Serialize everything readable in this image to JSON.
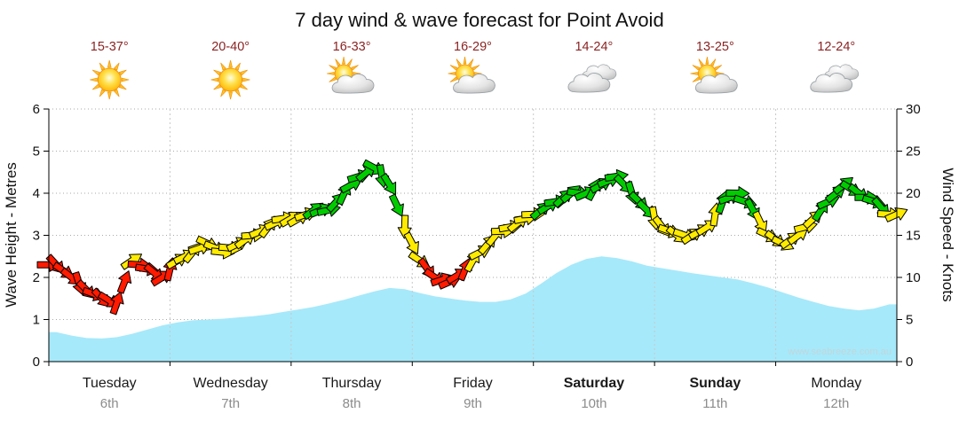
{
  "title": "7 day wind & wave forecast for Point Avoid",
  "watermark": "www.seabreeze.com.au",
  "axes": {
    "left_title": "Wave Height - Metres",
    "right_title": "Wind Speed - Knots"
  },
  "days": [
    {
      "name": "Tuesday",
      "date": "6th",
      "temp": "15-37°",
      "icon": "sunny",
      "bold": false
    },
    {
      "name": "Wednesday",
      "date": "7th",
      "temp": "20-40°",
      "icon": "sunny",
      "bold": false
    },
    {
      "name": "Thursday",
      "date": "8th",
      "temp": "16-33°",
      "icon": "partly-cloudy",
      "bold": false
    },
    {
      "name": "Friday",
      "date": "9th",
      "temp": "16-29°",
      "icon": "partly-cloudy",
      "bold": false
    },
    {
      "name": "Saturday",
      "date": "10th",
      "temp": "14-24°",
      "icon": "cloudy",
      "bold": true
    },
    {
      "name": "Sunday",
      "date": "11th",
      "temp": "13-25°",
      "icon": "partly-cloudy",
      "bold": true
    },
    {
      "name": "Monday",
      "date": "12th",
      "temp": "12-24°",
      "icon": "cloudy",
      "bold": false
    }
  ],
  "colors": {
    "temp": "#8B2323",
    "day": "#1A1A1A",
    "date": "#8C8C8C",
    "grid": "#AAAAAA",
    "day_divider": "#C8C8C8",
    "axis": "#000000",
    "watermark": "#C2D6DB",
    "wave": "#A6E9FA",
    "wind_red": "#FF1A00",
    "wind_yellow": "#FFEB00",
    "wind_green": "#00CC00"
  },
  "chart_data": {
    "type": "area",
    "description": "Wave height area (left axis, metres) with wind speed arrow band (right axis, knots), 3-hourly over 7 days",
    "x_unit": "hours",
    "x_start_hours": 1.5,
    "x_step_hours": 3,
    "days_span": 7,
    "left_axis": {
      "label": "Wave Height - Metres",
      "range": [
        0,
        6
      ],
      "tick": 1
    },
    "right_axis": {
      "label": "Wind Speed - Knots",
      "range": [
        0,
        30
      ],
      "tick": 5
    },
    "wind_color_thresholds": {
      "red_below_knots": 12,
      "yellow_below_knots": 18,
      "green_from_knots": 18
    },
    "series": [
      {
        "name": "Wave Height (m)",
        "type": "area",
        "axis": "left",
        "values": [
          0.7,
          0.62,
          0.56,
          0.55,
          0.58,
          0.66,
          0.76,
          0.86,
          0.93,
          0.98,
          1.0,
          1.02,
          1.05,
          1.08,
          1.12,
          1.18,
          1.24,
          1.3,
          1.38,
          1.47,
          1.57,
          1.67,
          1.75,
          1.72,
          1.63,
          1.55,
          1.5,
          1.45,
          1.42,
          1.42,
          1.48,
          1.62,
          1.85,
          2.1,
          2.3,
          2.44,
          2.5,
          2.46,
          2.38,
          2.28,
          2.22,
          2.16,
          2.1,
          2.05,
          2.0,
          1.95,
          1.86,
          1.76,
          1.64,
          1.52,
          1.42,
          1.32,
          1.26,
          1.22,
          1.26,
          1.36
        ]
      },
      {
        "name": "Wind Speed (knots)",
        "type": "wind-arrows",
        "axis": "right",
        "values": [
          11.5,
          10,
          8.5,
          7.5,
          7,
          12,
          11,
          10,
          12,
          13,
          14,
          13,
          14,
          15,
          16,
          17,
          17,
          18,
          18,
          20,
          22,
          23,
          21,
          16,
          12,
          10,
          9.5,
          11,
          13,
          15,
          16,
          17,
          18,
          19,
          20,
          20,
          21,
          22,
          20,
          18,
          16,
          15,
          15,
          16,
          19,
          20,
          18,
          15,
          14,
          15,
          17,
          19,
          21,
          20,
          19,
          17.5
        ]
      }
    ]
  }
}
